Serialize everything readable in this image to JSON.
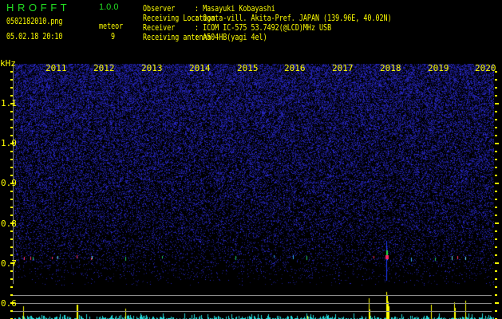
{
  "app": {
    "name": "H R O F F T",
    "version": "1.0.0"
  },
  "file": {
    "name": "0502182010.png",
    "datetime": "05.02.18 20:10"
  },
  "meteor": {
    "label": "meteor",
    "count": "9"
  },
  "info": [
    {
      "label": "Observer",
      "value": ": Masayuki Kobayashi"
    },
    {
      "label": "Receiving Location",
      "value": ": Ogata-vill. Akita-Pref. JAPAN (139.96E, 40.02N)"
    },
    {
      "label": "Receiver",
      "value": ": ICOM IC-575 53.7492(@LCD)MHz USB"
    },
    {
      "label": "Receiving antenna",
      "value": ": A504HB(yagi 4el)"
    }
  ],
  "axis": {
    "unit": "kHz",
    "x_labels": [
      "2011",
      "2012",
      "2013",
      "2014",
      "2015",
      "2016",
      "2017",
      "2018",
      "2019",
      "2020"
    ],
    "y_labels": [
      "1.1",
      "1.0",
      "0.9",
      "0.8",
      "0.7",
      "0.6"
    ]
  },
  "colors": {
    "text": "#ffff00",
    "logo": "#22dd22",
    "noise": "#2a2ad0",
    "histogram": "#22dddd",
    "echo": "#ffff00"
  }
}
